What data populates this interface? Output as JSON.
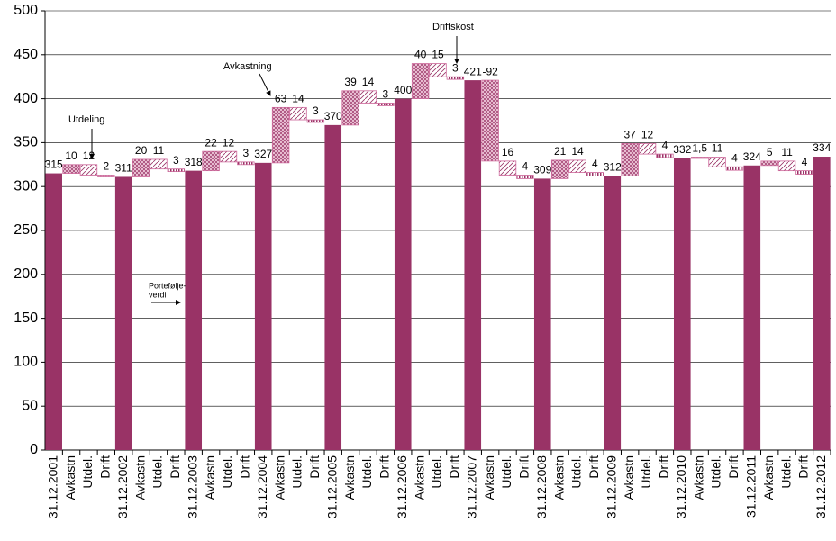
{
  "chart_data": {
    "type": "waterfall",
    "categories": [
      "31.12.2001",
      "Avkastn",
      "Utdel.",
      "Drift",
      "31.12.2002",
      "Avkastn",
      "Utdel.",
      "Drift",
      "31.12.2003",
      "Avkastn",
      "Utdel.",
      "Drift",
      "31.12.2004",
      "Avkastn",
      "Utdel.",
      "Drift",
      "31.12.2005",
      "Avkastn",
      "Utdel.",
      "Drift",
      "31.12.2006",
      "Avkastn",
      "Utdel.",
      "Drift",
      "31.12.2007",
      "Avkastn",
      "Utdel.",
      "Drift",
      "31.12.2008",
      "Avkastn",
      "Utdel.",
      "Drift",
      "31.12.2009",
      "Avkastn",
      "Utdel.",
      "Drift",
      "31.12.2010",
      "Avkastn",
      "Utdel.",
      "Drift",
      "31.12.2011",
      "Avkastn",
      "Utdel.",
      "Drift",
      "31.12.2012"
    ],
    "values": [
      315,
      10,
      12,
      2,
      311,
      20,
      11,
      3,
      318,
      22,
      12,
      3,
      327,
      63,
      14,
      3,
      370,
      39,
      14,
      3,
      400,
      40,
      15,
      3,
      421,
      -92,
      16,
      4,
      309,
      21,
      14,
      4,
      312,
      37,
      12,
      4,
      332,
      1.5,
      11,
      4,
      324,
      5,
      11,
      4,
      334
    ],
    "value_labels": [
      null,
      null,
      null,
      null,
      null,
      null,
      null,
      null,
      null,
      null,
      null,
      null,
      null,
      null,
      null,
      null,
      null,
      null,
      null,
      null,
      null,
      null,
      null,
      null,
      null,
      null,
      null,
      null,
      null,
      null,
      null,
      null,
      null,
      null,
      null,
      null,
      null,
      "1,5",
      null,
      null,
      null,
      null,
      null,
      null,
      null
    ],
    "color": "#993366",
    "change_color": "#cc6699",
    "ylim": [
      0,
      500
    ],
    "yticks": [
      0,
      50,
      100,
      150,
      200,
      250,
      300,
      350,
      400,
      450,
      500
    ],
    "grid": true,
    "annotations": [
      "Avkastning",
      "Utdeling",
      "Driftskost",
      [
        "Portefølje-",
        "verdi"
      ]
    ]
  }
}
